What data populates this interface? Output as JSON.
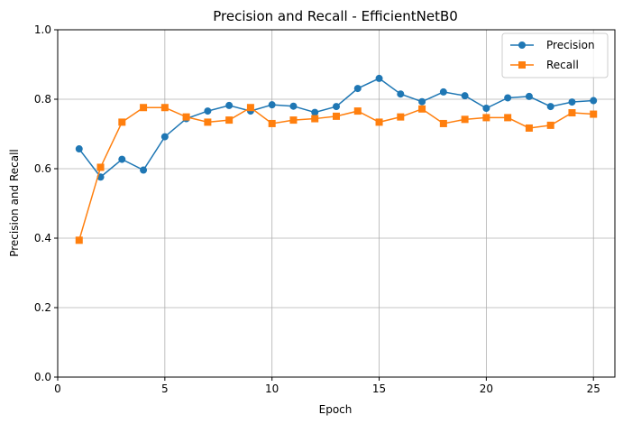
{
  "chart_data": {
    "type": "line",
    "title": "Precision and Recall - EfficientNetB0",
    "xlabel": "Epoch",
    "ylabel": "Precision and Recall",
    "xlim": [
      0,
      26
    ],
    "ylim": [
      0.0,
      1.0
    ],
    "xticks": [
      0,
      5,
      10,
      15,
      20,
      25
    ],
    "yticks": [
      0.0,
      0.2,
      0.4,
      0.6,
      0.8,
      1.0
    ],
    "xtick_labels": [
      "0",
      "5",
      "10",
      "15",
      "20",
      "25"
    ],
    "ytick_labels": [
      "0.0",
      "0.2",
      "0.4",
      "0.6",
      "0.8",
      "1.0"
    ],
    "grid": true,
    "legend_position": "top-right",
    "x": [
      1,
      2,
      3,
      4,
      5,
      6,
      7,
      8,
      9,
      10,
      11,
      12,
      13,
      14,
      15,
      16,
      17,
      18,
      19,
      20,
      21,
      22,
      23,
      24,
      25
    ],
    "series": [
      {
        "name": "Precision",
        "color": "#1f77b4",
        "marker": "circle",
        "values": [
          0.657,
          0.576,
          0.627,
          0.596,
          0.692,
          0.744,
          0.766,
          0.782,
          0.766,
          0.784,
          0.78,
          0.762,
          0.779,
          0.831,
          0.86,
          0.815,
          0.793,
          0.821,
          0.81,
          0.774,
          0.804,
          0.808,
          0.779,
          0.792,
          0.796
        ]
      },
      {
        "name": "Recall",
        "color": "#ff7f0e",
        "marker": "square",
        "values": [
          0.394,
          0.604,
          0.734,
          0.776,
          0.776,
          0.749,
          0.734,
          0.74,
          0.776,
          0.73,
          0.74,
          0.744,
          0.751,
          0.766,
          0.734,
          0.749,
          0.772,
          0.73,
          0.742,
          0.747,
          0.747,
          0.717,
          0.725,
          0.761,
          0.757
        ]
      }
    ]
  }
}
